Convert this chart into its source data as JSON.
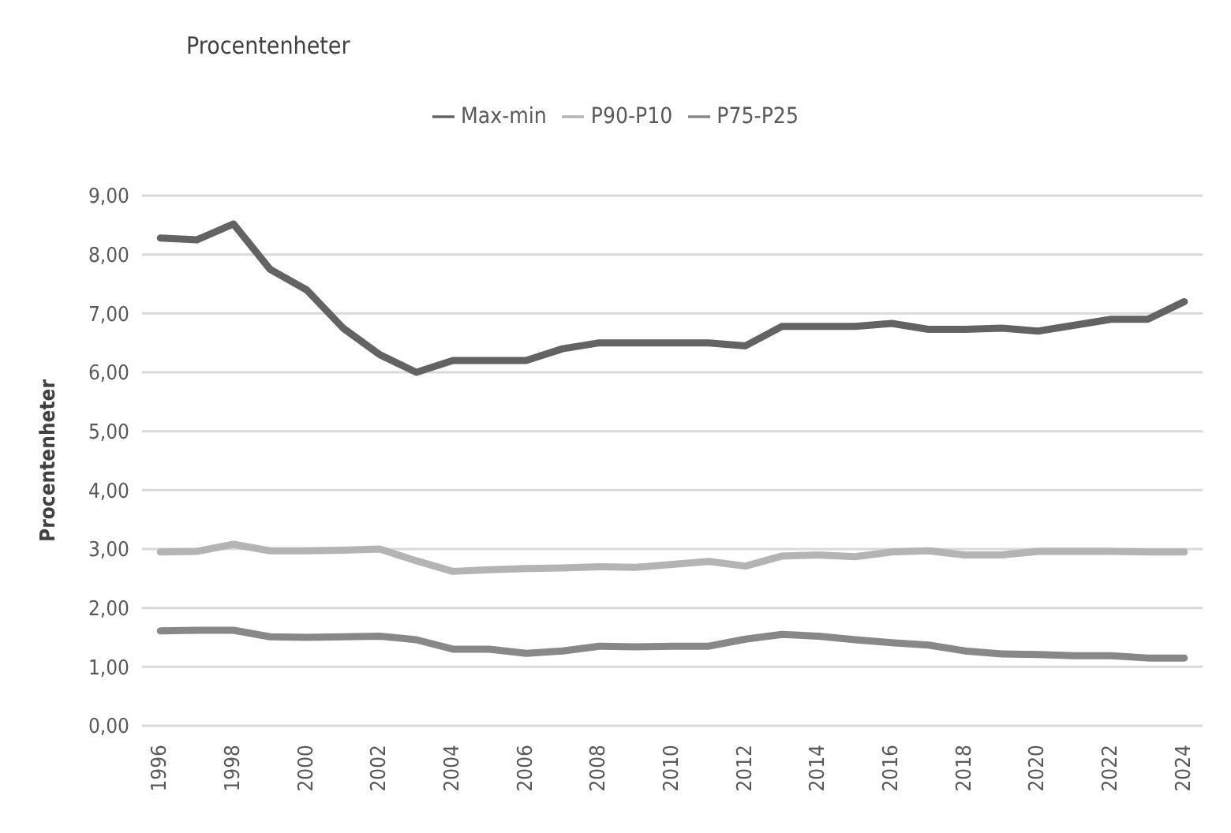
{
  "chart_data": {
    "type": "line",
    "title": "Procentenheter",
    "ylabel": "Procentenheter",
    "categories": [
      "1996",
      null,
      "1998",
      null,
      "2000",
      null,
      "2002",
      null,
      "2004",
      null,
      "2006",
      null,
      "2008",
      null,
      "2010",
      null,
      "2012",
      null,
      "2014",
      null,
      "2016",
      null,
      "2018",
      null,
      "2020",
      null,
      "2022",
      null,
      "2024"
    ],
    "series": [
      {
        "name": "Max-min",
        "color": "#636363",
        "values": [
          8.28,
          8.25,
          8.52,
          7.75,
          7.4,
          6.75,
          6.3,
          6.0,
          6.2,
          6.2,
          6.2,
          6.4,
          6.5,
          6.5,
          6.5,
          6.5,
          6.45,
          6.78,
          6.78,
          6.78,
          6.83,
          6.73,
          6.73,
          6.75,
          6.7,
          6.8,
          6.9,
          6.9,
          7.2
        ]
      },
      {
        "name": "P90-P10",
        "color": "#b4b4b4",
        "values": [
          2.95,
          2.96,
          3.08,
          2.97,
          2.97,
          2.98,
          3.0,
          2.8,
          2.62,
          2.65,
          2.67,
          2.68,
          2.7,
          2.69,
          2.74,
          2.79,
          2.71,
          2.88,
          2.9,
          2.87,
          2.95,
          2.97,
          2.9,
          2.9,
          2.96,
          2.96,
          2.96,
          2.95,
          2.95
        ]
      },
      {
        "name": "P75-P25",
        "color": "#888888",
        "values": [
          1.61,
          1.62,
          1.62,
          1.51,
          1.5,
          1.51,
          1.52,
          1.46,
          1.3,
          1.3,
          1.23,
          1.27,
          1.35,
          1.34,
          1.35,
          1.35,
          1.47,
          1.55,
          1.52,
          1.46,
          1.41,
          1.37,
          1.27,
          1.22,
          1.21,
          1.19,
          1.19,
          1.15,
          1.15
        ]
      }
    ],
    "ylim": [
      0,
      9
    ],
    "yticks": [
      {
        "value": 0,
        "label": "0,00"
      },
      {
        "value": 1,
        "label": "1,00"
      },
      {
        "value": 2,
        "label": "2,00"
      },
      {
        "value": 3,
        "label": "3,00"
      },
      {
        "value": 4,
        "label": "4,00"
      },
      {
        "value": 5,
        "label": "5,00"
      },
      {
        "value": 6,
        "label": "6,00"
      },
      {
        "value": 7,
        "label": "7,00"
      },
      {
        "value": 8,
        "label": "8,00"
      },
      {
        "value": 9,
        "label": "9,00"
      }
    ],
    "grid": "y",
    "legend": "top",
    "marker": "none",
    "line_style": "solid"
  }
}
